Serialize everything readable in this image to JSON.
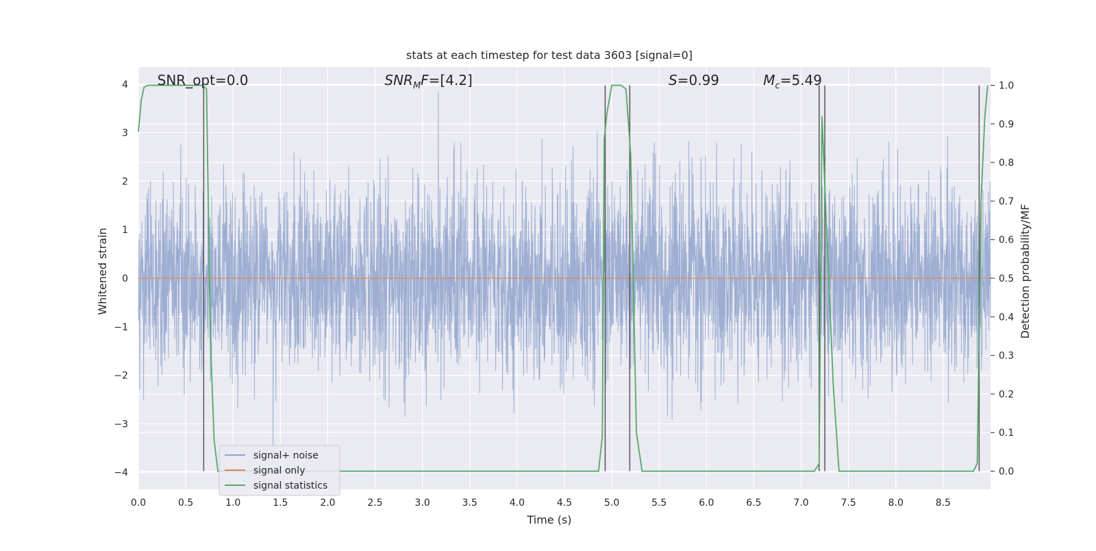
{
  "chart_data": {
    "type": "line",
    "title": "stats at each timestep for test data 3603 [signal=0]",
    "xlabel": "Time (s)",
    "ylabel": "Whitened strain",
    "y2label": "Detection probability/MF",
    "xlim": [
      0,
      9
    ],
    "ylim": [
      -4.35,
      4.35
    ],
    "y2lim": [
      -0.047,
      1.047
    ],
    "x_ticks": [
      0.0,
      0.5,
      1.0,
      1.5,
      2.0,
      2.5,
      3.0,
      3.5,
      4.0,
      4.5,
      5.0,
      5.5,
      6.0,
      6.5,
      7.0,
      7.5,
      8.0,
      8.5
    ],
    "x_tick_labels": [
      "0.0",
      "0.5",
      "1.0",
      "1.5",
      "2.0",
      "2.5",
      "3.0",
      "3.5",
      "4.0",
      "4.5",
      "5.0",
      "5.5",
      "6.0",
      "6.5",
      "7.0",
      "7.5",
      "8.0",
      "8.5"
    ],
    "y_ticks": [
      -4,
      -3,
      -2,
      -1,
      0,
      1,
      2,
      3,
      4
    ],
    "y_tick_labels": [
      "−4",
      "−3",
      "−2",
      "−1",
      "0",
      "1",
      "2",
      "3",
      "4"
    ],
    "y2_ticks": [
      0.0,
      0.1,
      0.2,
      0.3,
      0.4,
      0.5,
      0.6,
      0.7,
      0.8,
      0.9,
      1.0
    ],
    "y2_tick_labels": [
      "0.0",
      "0.1",
      "0.2",
      "0.3",
      "0.4",
      "0.5",
      "0.6",
      "0.7",
      "0.8",
      "0.9",
      "1.0"
    ],
    "grid": true,
    "legend_placement": "lower-left",
    "annotations": [
      {
        "parts": [
          {
            "text": "SNR_opt=0.0",
            "italic": false
          }
        ],
        "x": 0.2
      },
      {
        "parts": [
          {
            "text": "SNR",
            "italic": true
          },
          {
            "text": "M",
            "italic": true,
            "sub": true
          },
          {
            "text": "F",
            "italic": true
          },
          {
            "text": "=[4.2]",
            "italic": false
          }
        ],
        "x": 2.6
      },
      {
        "parts": [
          {
            "text": "S",
            "italic": true
          },
          {
            "text": "=0.99",
            "italic": false
          }
        ],
        "x": 5.6
      },
      {
        "parts": [
          {
            "text": "M",
            "italic": true
          },
          {
            "text": "c",
            "italic": true,
            "sub": true
          },
          {
            "text": "=5.49",
            "italic": false
          }
        ],
        "x": 6.6
      }
    ],
    "series": [
      {
        "name": "signal+ noise",
        "color": "#8fa3cc",
        "kind": "noise",
        "envelope_sigma": 1.0
      },
      {
        "name": "signal only",
        "color": "#dd8452",
        "values": [
          0,
          0
        ]
      },
      {
        "name": "signal statistics",
        "color": "#55a868",
        "axis": "right",
        "x": [
          0.0,
          0.03,
          0.06,
          0.1,
          0.2,
          0.3,
          0.4,
          0.5,
          0.6,
          0.68,
          0.72,
          0.76,
          0.8,
          0.84,
          1.0,
          2.0,
          3.0,
          4.0,
          4.86,
          4.9,
          4.92,
          4.95,
          5.0,
          5.1,
          5.15,
          5.2,
          5.26,
          5.32,
          5.5,
          6.0,
          7.0,
          7.14,
          7.19,
          7.22,
          7.27,
          7.34,
          7.4,
          8.0,
          8.82,
          8.86,
          8.9,
          8.94,
          8.97
        ],
        "y": [
          0.88,
          0.96,
          0.995,
          1.0,
          1.0,
          1.0,
          1.0,
          1.0,
          1.0,
          1.0,
          0.99,
          0.35,
          0.08,
          0.0,
          0.0,
          0.0,
          0.0,
          0.0,
          0.0,
          0.09,
          0.86,
          0.93,
          1.0,
          1.0,
          0.99,
          0.82,
          0.1,
          0.0,
          0.0,
          0.0,
          0.0,
          0.0,
          0.02,
          0.92,
          0.62,
          0.22,
          0.0,
          0.0,
          0.0,
          0.02,
          0.7,
          0.92,
          1.0
        ]
      }
    ],
    "vertical_lines": [
      0.69,
      4.93,
      5.19,
      7.19,
      7.25,
      8.88
    ],
    "colors": {
      "plot_background": "#eaeaf2",
      "grid": "#ffffff",
      "vlines": "#555555"
    }
  }
}
